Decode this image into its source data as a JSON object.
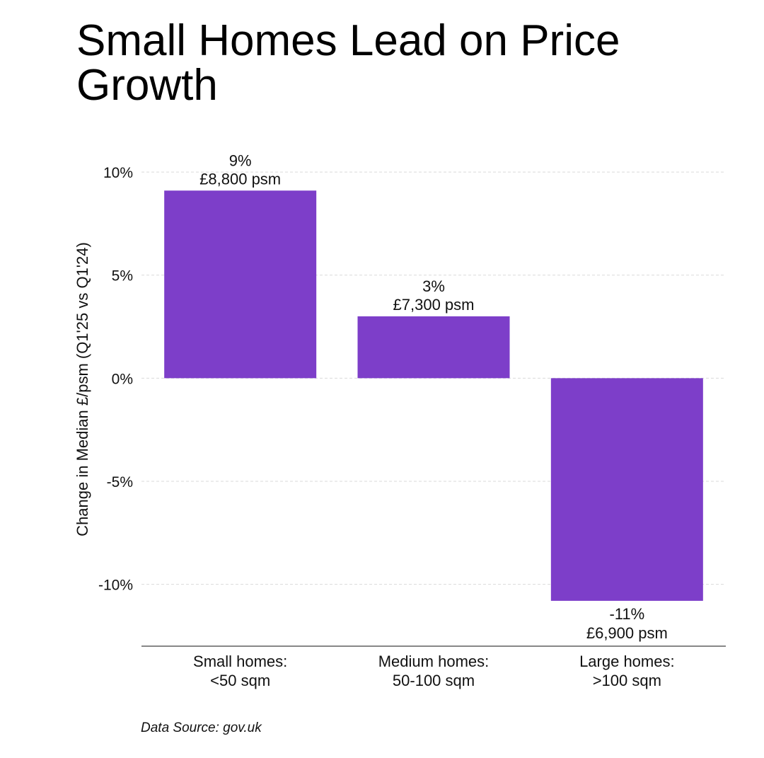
{
  "chart_data": {
    "type": "bar",
    "title_lines": [
      "Small Homes Lead on Price",
      "Growth"
    ],
    "ylabel": "Change in Median £/psm (Q1'25 vs Q1'24)",
    "xlabel": "",
    "categories": [
      [
        "Small homes:",
        "<50 sqm"
      ],
      [
        "Medium homes:",
        "50-100 sqm"
      ],
      [
        "Large homes:",
        ">100 sqm"
      ]
    ],
    "values": [
      9.1,
      3.0,
      -10.8
    ],
    "data_labels": [
      [
        "9%",
        "£8,800 psm"
      ],
      [
        "3%",
        "£7,300 psm"
      ],
      [
        "-11%",
        "£6,900 psm"
      ]
    ],
    "yticks": [
      10,
      5,
      0,
      -5,
      -10
    ],
    "ytick_labels": [
      "10%",
      "5%",
      "0%",
      "-5%",
      "-10%"
    ],
    "ylim": [
      -13,
      10.5
    ],
    "grid": true,
    "bar_color": "#7d3ec9",
    "source": "Data Source: gov.uk"
  }
}
